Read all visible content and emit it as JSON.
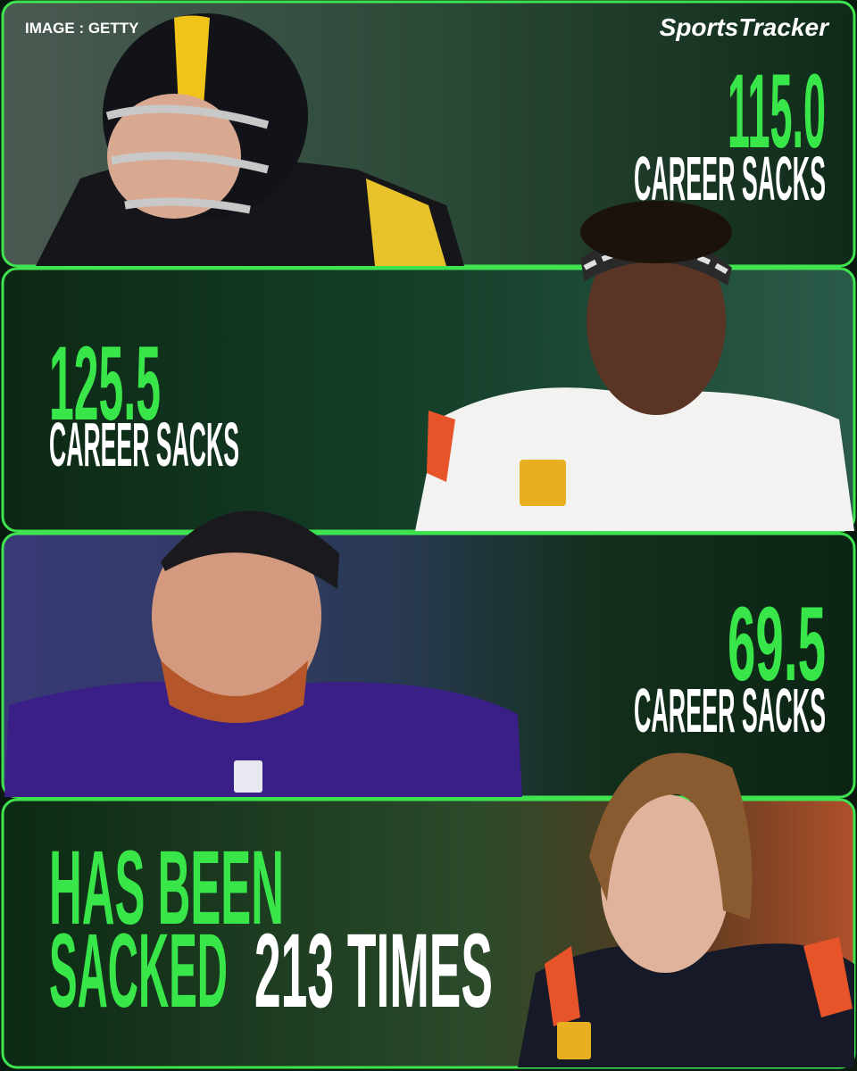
{
  "header": {
    "credit": "IMAGE : GETTY",
    "brand": "SportsTracker"
  },
  "panels": [
    {
      "stat": "115.0",
      "label": "CAREER SACKS"
    },
    {
      "stat": "125.5",
      "label": "CAREER SACKS"
    },
    {
      "stat": "69.5",
      "label": "CAREER SACKS"
    }
  ],
  "final": {
    "line1": "HAS BEEN",
    "line2_green": "SACKED",
    "line2_white": "213 TIMES"
  }
}
